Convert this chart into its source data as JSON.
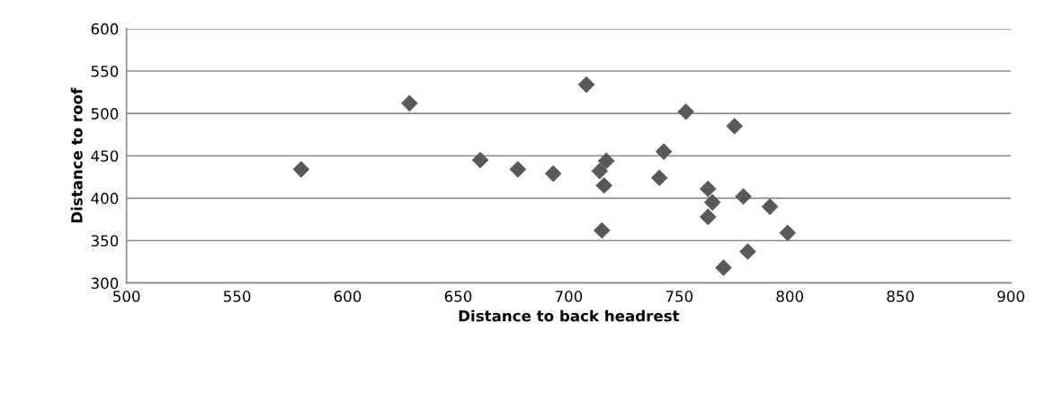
{
  "chart_data": {
    "type": "scatter",
    "xlabel": "Distance to back headrest",
    "ylabel": "Distance to roof",
    "x": [
      579,
      628,
      660,
      677,
      693,
      708,
      714,
      715,
      716,
      717,
      741,
      743,
      753,
      763,
      763,
      765,
      770,
      775,
      779,
      781,
      791,
      799
    ],
    "series": [
      {
        "color": "#595959",
        "values": [
          434,
          512,
          445,
          434,
          429,
          534,
          432,
          362,
          415,
          444,
          424,
          455,
          502,
          411,
          378,
          395,
          318,
          485,
          402,
          337,
          390,
          359
        ]
      }
    ],
    "xlim": [
      500,
      900
    ],
    "xticks": [
      500,
      550,
      600,
      650,
      700,
      750,
      800,
      850,
      900
    ],
    "ylim": [
      300,
      600
    ],
    "yticks": [
      300,
      350,
      400,
      450,
      500,
      550,
      600
    ],
    "grid": "y",
    "marker": "diamond",
    "legend": false
  }
}
